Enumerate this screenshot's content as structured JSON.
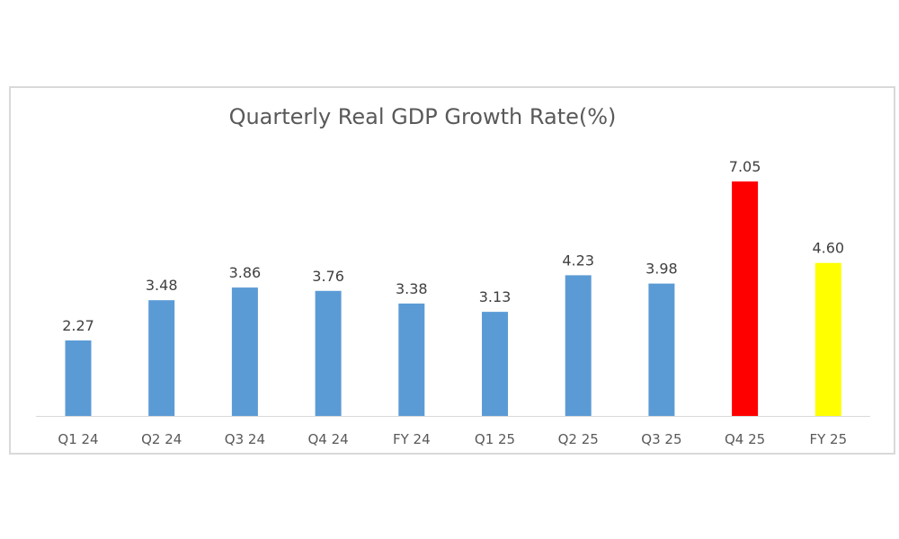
{
  "chart_data": {
    "type": "bar",
    "title": "Quarterly Real GDP Growth Rate(%)",
    "xlabel": "",
    "ylabel": "",
    "categories": [
      "Q1 24",
      "Q2 24",
      "Q3 24",
      "Q4 24",
      "FY 24",
      "Q1 25",
      "Q2 25",
      "Q3 25",
      "Q4 25",
      "FY 25"
    ],
    "values": [
      2.27,
      3.48,
      3.86,
      3.76,
      3.38,
      3.13,
      4.23,
      3.98,
      7.05,
      4.6
    ],
    "data_labels": [
      "2.27",
      "3.48",
      "3.86",
      "3.76",
      "3.38",
      "3.13",
      "4.23",
      "3.98",
      "7.05",
      "4.60"
    ],
    "colors": [
      "#5b9bd5",
      "#5b9bd5",
      "#5b9bd5",
      "#5b9bd5",
      "#5b9bd5",
      "#5b9bd5",
      "#5b9bd5",
      "#5b9bd5",
      "#ff0000",
      "#ffff00"
    ],
    "ylim": [
      0,
      7.05
    ],
    "grid": false,
    "legend": "none"
  }
}
